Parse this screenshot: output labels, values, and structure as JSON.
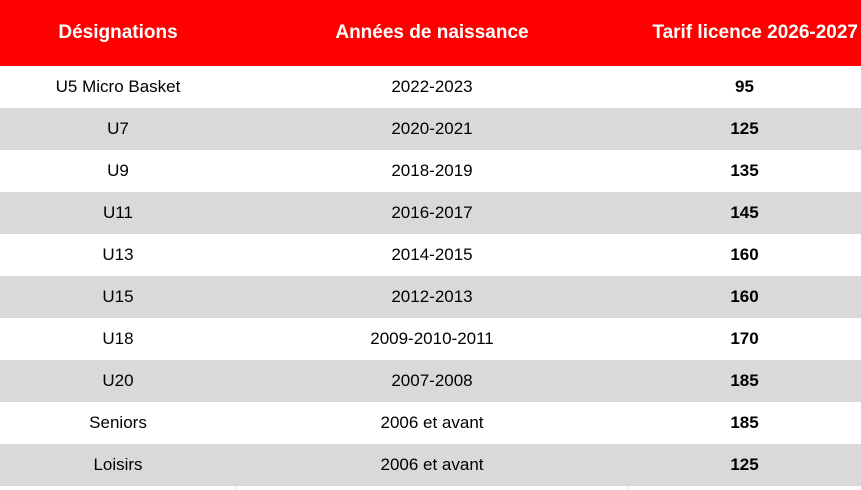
{
  "table": {
    "headers": {
      "designation": "Désignations",
      "birth_years": "Années de naissance",
      "fee": "Tarif licence 2026-2027"
    },
    "rows": [
      {
        "designation": "U5 Micro Basket",
        "birth_years": "2022-2023",
        "fee": "95"
      },
      {
        "designation": "U7",
        "birth_years": "2020-2021",
        "fee": "125"
      },
      {
        "designation": "U9",
        "birth_years": "2018-2019",
        "fee": "135"
      },
      {
        "designation": "U11",
        "birth_years": "2016-2017",
        "fee": "145"
      },
      {
        "designation": "U13",
        "birth_years": "2014-2015",
        "fee": "160"
      },
      {
        "designation": "U15",
        "birth_years": "2012-2013",
        "fee": "160"
      },
      {
        "designation": "U18",
        "birth_years": "2009-2010-2011",
        "fee": "170"
      },
      {
        "designation": "U20",
        "birth_years": "2007-2008",
        "fee": "185"
      },
      {
        "designation": "Seniors",
        "birth_years": "2006 et avant",
        "fee": "185"
      },
      {
        "designation": "Loisirs",
        "birth_years": "2006 et avant",
        "fee": "125"
      }
    ]
  },
  "colors": {
    "header_background": "#ff0000",
    "header_text": "#ffffff",
    "stripe_background": "#d9d9d9",
    "row_background": "#ffffff"
  }
}
